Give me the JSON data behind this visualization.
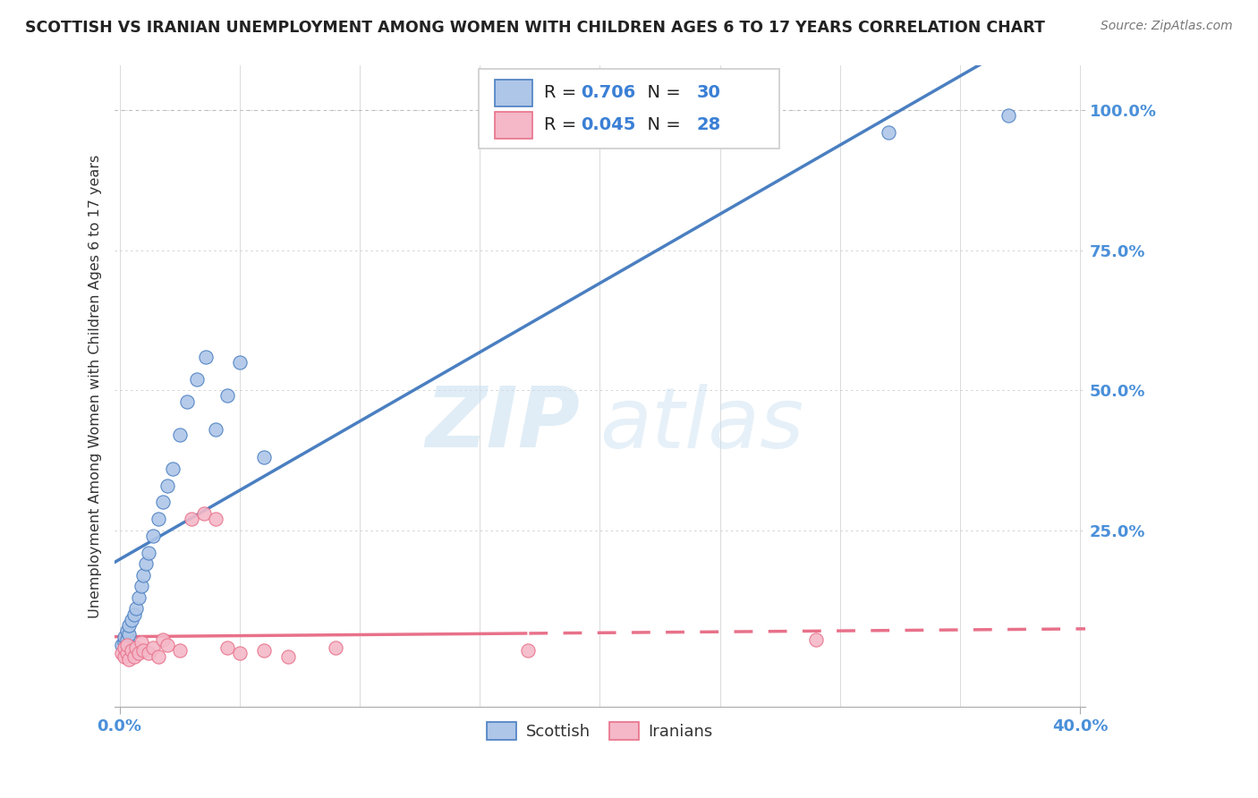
{
  "title": "SCOTTISH VS IRANIAN UNEMPLOYMENT AMONG WOMEN WITH CHILDREN AGES 6 TO 17 YEARS CORRELATION CHART",
  "source": "Source: ZipAtlas.com",
  "ylabel": "Unemployment Among Women with Children Ages 6 to 17 years",
  "legend_r": [
    "R = 0.706",
    "R = 0.045"
  ],
  "legend_n": [
    "N = 30",
    "N = 28"
  ],
  "scottish_color": "#aec6e8",
  "iranian_color": "#f4b8c8",
  "scottish_line_color": "#4a7fc1",
  "iranian_line_color": "#e8718a",
  "watermark_zip": "ZIP",
  "watermark_atlas": "atlas",
  "background_color": "#ffffff",
  "scottish_x": [
    0.001,
    0.002,
    0.002,
    0.003,
    0.003,
    0.004,
    0.004,
    0.005,
    0.006,
    0.007,
    0.008,
    0.009,
    0.01,
    0.011,
    0.012,
    0.014,
    0.016,
    0.018,
    0.02,
    0.022,
    0.025,
    0.028,
    0.032,
    0.036,
    0.04,
    0.045,
    0.05,
    0.06,
    0.32,
    0.37
  ],
  "scottish_y": [
    0.045,
    0.05,
    0.06,
    0.055,
    0.07,
    0.065,
    0.08,
    0.09,
    0.1,
    0.11,
    0.13,
    0.15,
    0.17,
    0.19,
    0.21,
    0.24,
    0.27,
    0.3,
    0.33,
    0.36,
    0.42,
    0.48,
    0.52,
    0.56,
    0.43,
    0.49,
    0.55,
    0.38,
    0.96,
    0.99
  ],
  "iranian_x": [
    0.001,
    0.002,
    0.002,
    0.003,
    0.003,
    0.004,
    0.005,
    0.006,
    0.007,
    0.008,
    0.009,
    0.01,
    0.012,
    0.014,
    0.016,
    0.018,
    0.02,
    0.025,
    0.03,
    0.035,
    0.04,
    0.045,
    0.05,
    0.06,
    0.07,
    0.09,
    0.17,
    0.29
  ],
  "iranian_y": [
    0.03,
    0.025,
    0.04,
    0.03,
    0.045,
    0.02,
    0.035,
    0.025,
    0.04,
    0.03,
    0.05,
    0.035,
    0.03,
    0.04,
    0.025,
    0.055,
    0.045,
    0.035,
    0.27,
    0.28,
    0.27,
    0.04,
    0.03,
    0.035,
    0.025,
    0.04,
    0.035,
    0.055
  ],
  "xlim": [
    0.0,
    0.4
  ],
  "ylim": [
    -0.065,
    1.08
  ],
  "ytick_vals": [
    0.0,
    0.25,
    0.5,
    0.75,
    1.0
  ],
  "ytick_labels": [
    "",
    "25.0%",
    "50.0%",
    "75.0%",
    "100.0%"
  ]
}
